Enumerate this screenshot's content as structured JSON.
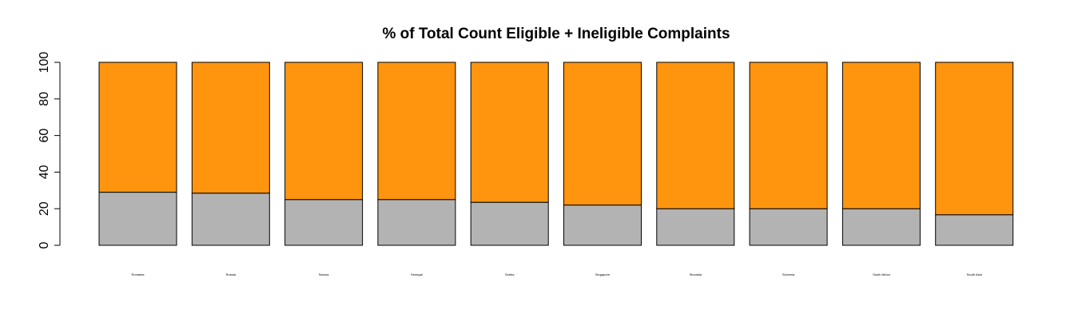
{
  "chart_data": {
    "type": "bar",
    "stacked": true,
    "title": "% of Total Count Eligible + Ineligible Complaints",
    "xlabel": "",
    "ylabel": "",
    "ylim": [
      0,
      100
    ],
    "yticks": [
      0,
      20,
      40,
      60,
      80,
      100
    ],
    "grid": false,
    "categories": [
      "Romania",
      "Russia",
      "Samoa",
      "Senegal",
      "Serbia",
      "Singapore",
      "Slovakia",
      "Slovenia",
      "South Africa",
      "South Asia"
    ],
    "series": [
      {
        "color": "#b3b3b3",
        "values": [
          29,
          28.5,
          25,
          25,
          23.5,
          22,
          20,
          20,
          20,
          16.7
        ]
      },
      {
        "color": "#ff950e",
        "values": [
          71,
          71.5,
          75,
          75,
          76.5,
          78,
          80,
          80,
          80,
          83.3
        ]
      }
    ]
  }
}
